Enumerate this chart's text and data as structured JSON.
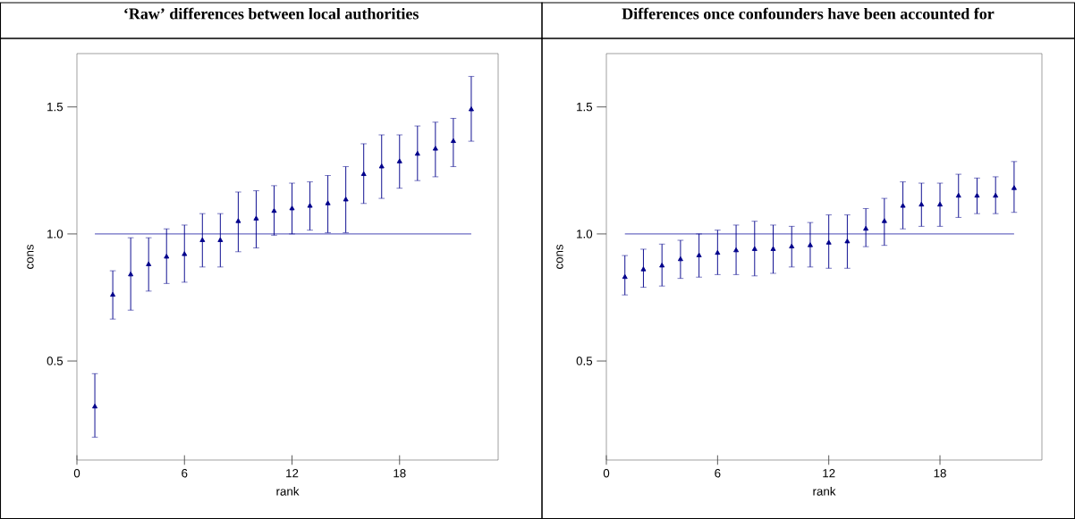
{
  "chart_data": [
    {
      "type": "scatter",
      "title": "‘Raw’ differences between local authorities",
      "xlabel": "rank",
      "ylabel": "cons",
      "x": [
        1,
        2,
        3,
        4,
        5,
        6,
        7,
        8,
        9,
        10,
        11,
        12,
        13,
        14,
        15,
        16,
        17,
        18,
        19,
        20,
        21,
        22
      ],
      "series": [
        {
          "color": "#00008b",
          "values": [
            0.32,
            0.76,
            0.84,
            0.88,
            0.91,
            0.92,
            0.975,
            0.975,
            1.05,
            1.06,
            1.09,
            1.1,
            1.11,
            1.12,
            1.135,
            1.235,
            1.265,
            1.285,
            1.315,
            1.335,
            1.365,
            1.49
          ],
          "errors": [
            [
              0.2,
              0.45
            ],
            [
              0.665,
              0.855
            ],
            [
              0.7,
              0.985
            ],
            [
              0.775,
              0.985
            ],
            [
              0.805,
              1.02
            ],
            [
              0.81,
              1.035
            ],
            [
              0.87,
              1.08
            ],
            [
              0.87,
              1.08
            ],
            [
              0.93,
              1.165
            ],
            [
              0.945,
              1.17
            ],
            [
              0.995,
              1.19
            ],
            [
              1.0,
              1.2
            ],
            [
              1.015,
              1.205
            ],
            [
              1.005,
              1.23
            ],
            [
              1.005,
              1.265
            ],
            [
              1.12,
              1.355
            ],
            [
              1.14,
              1.39
            ],
            [
              1.18,
              1.39
            ],
            [
              1.21,
              1.425
            ],
            [
              1.225,
              1.44
            ],
            [
              1.265,
              1.455
            ],
            [
              1.365,
              1.62
            ]
          ]
        }
      ],
      "xlim": [
        0,
        23.5
      ],
      "ylim": [
        0.11,
        1.71
      ],
      "xticks": [
        0,
        6,
        12,
        18
      ],
      "yticks": [
        {
          "value": 0.5,
          "label": "0.5"
        },
        {
          "value": 1,
          "label": "1.0"
        },
        {
          "value": 1.5,
          "label": "1.5"
        }
      ],
      "ref_lines": [
        {
          "axis": "y",
          "value": 1,
          "color": "#3a3ab0"
        }
      ],
      "marker": "triangle",
      "grid": false
    },
    {
      "type": "scatter",
      "title": "Differences once confounders have been accounted for",
      "xlabel": "rank",
      "ylabel": "cons",
      "x": [
        1,
        2,
        3,
        4,
        5,
        6,
        7,
        8,
        9,
        10,
        11,
        12,
        13,
        14,
        15,
        16,
        17,
        18,
        19,
        20,
        21,
        22
      ],
      "series": [
        {
          "color": "#00008b",
          "values": [
            0.83,
            0.86,
            0.875,
            0.9,
            0.915,
            0.925,
            0.935,
            0.94,
            0.94,
            0.95,
            0.955,
            0.965,
            0.97,
            1.02,
            1.05,
            1.11,
            1.115,
            1.115,
            1.15,
            1.15,
            1.15,
            1.18
          ],
          "errors": [
            [
              0.76,
              0.915
            ],
            [
              0.79,
              0.94
            ],
            [
              0.795,
              0.96
            ],
            [
              0.825,
              0.975
            ],
            [
              0.83,
              1.0
            ],
            [
              0.84,
              1.015
            ],
            [
              0.84,
              1.035
            ],
            [
              0.835,
              1.05
            ],
            [
              0.845,
              1.035
            ],
            [
              0.87,
              1.03
            ],
            [
              0.87,
              1.045
            ],
            [
              0.865,
              1.075
            ],
            [
              0.865,
              1.075
            ],
            [
              0.95,
              1.1
            ],
            [
              0.955,
              1.14
            ],
            [
              1.02,
              1.205
            ],
            [
              1.03,
              1.2
            ],
            [
              1.03,
              1.2
            ],
            [
              1.065,
              1.235
            ],
            [
              1.08,
              1.22
            ],
            [
              1.08,
              1.225
            ],
            [
              1.085,
              1.285
            ]
          ]
        }
      ],
      "xlim": [
        0,
        23.5
      ],
      "ylim": [
        0.11,
        1.71
      ],
      "xticks": [
        0,
        6,
        12,
        18
      ],
      "yticks": [
        {
          "value": 0.5,
          "label": "0.5"
        },
        {
          "value": 1,
          "label": "1.0"
        },
        {
          "value": 1.5,
          "label": "1.5"
        }
      ],
      "ref_lines": [
        {
          "axis": "y",
          "value": 1,
          "color": "#3a3ab0"
        }
      ],
      "marker": "triangle",
      "grid": false
    }
  ]
}
